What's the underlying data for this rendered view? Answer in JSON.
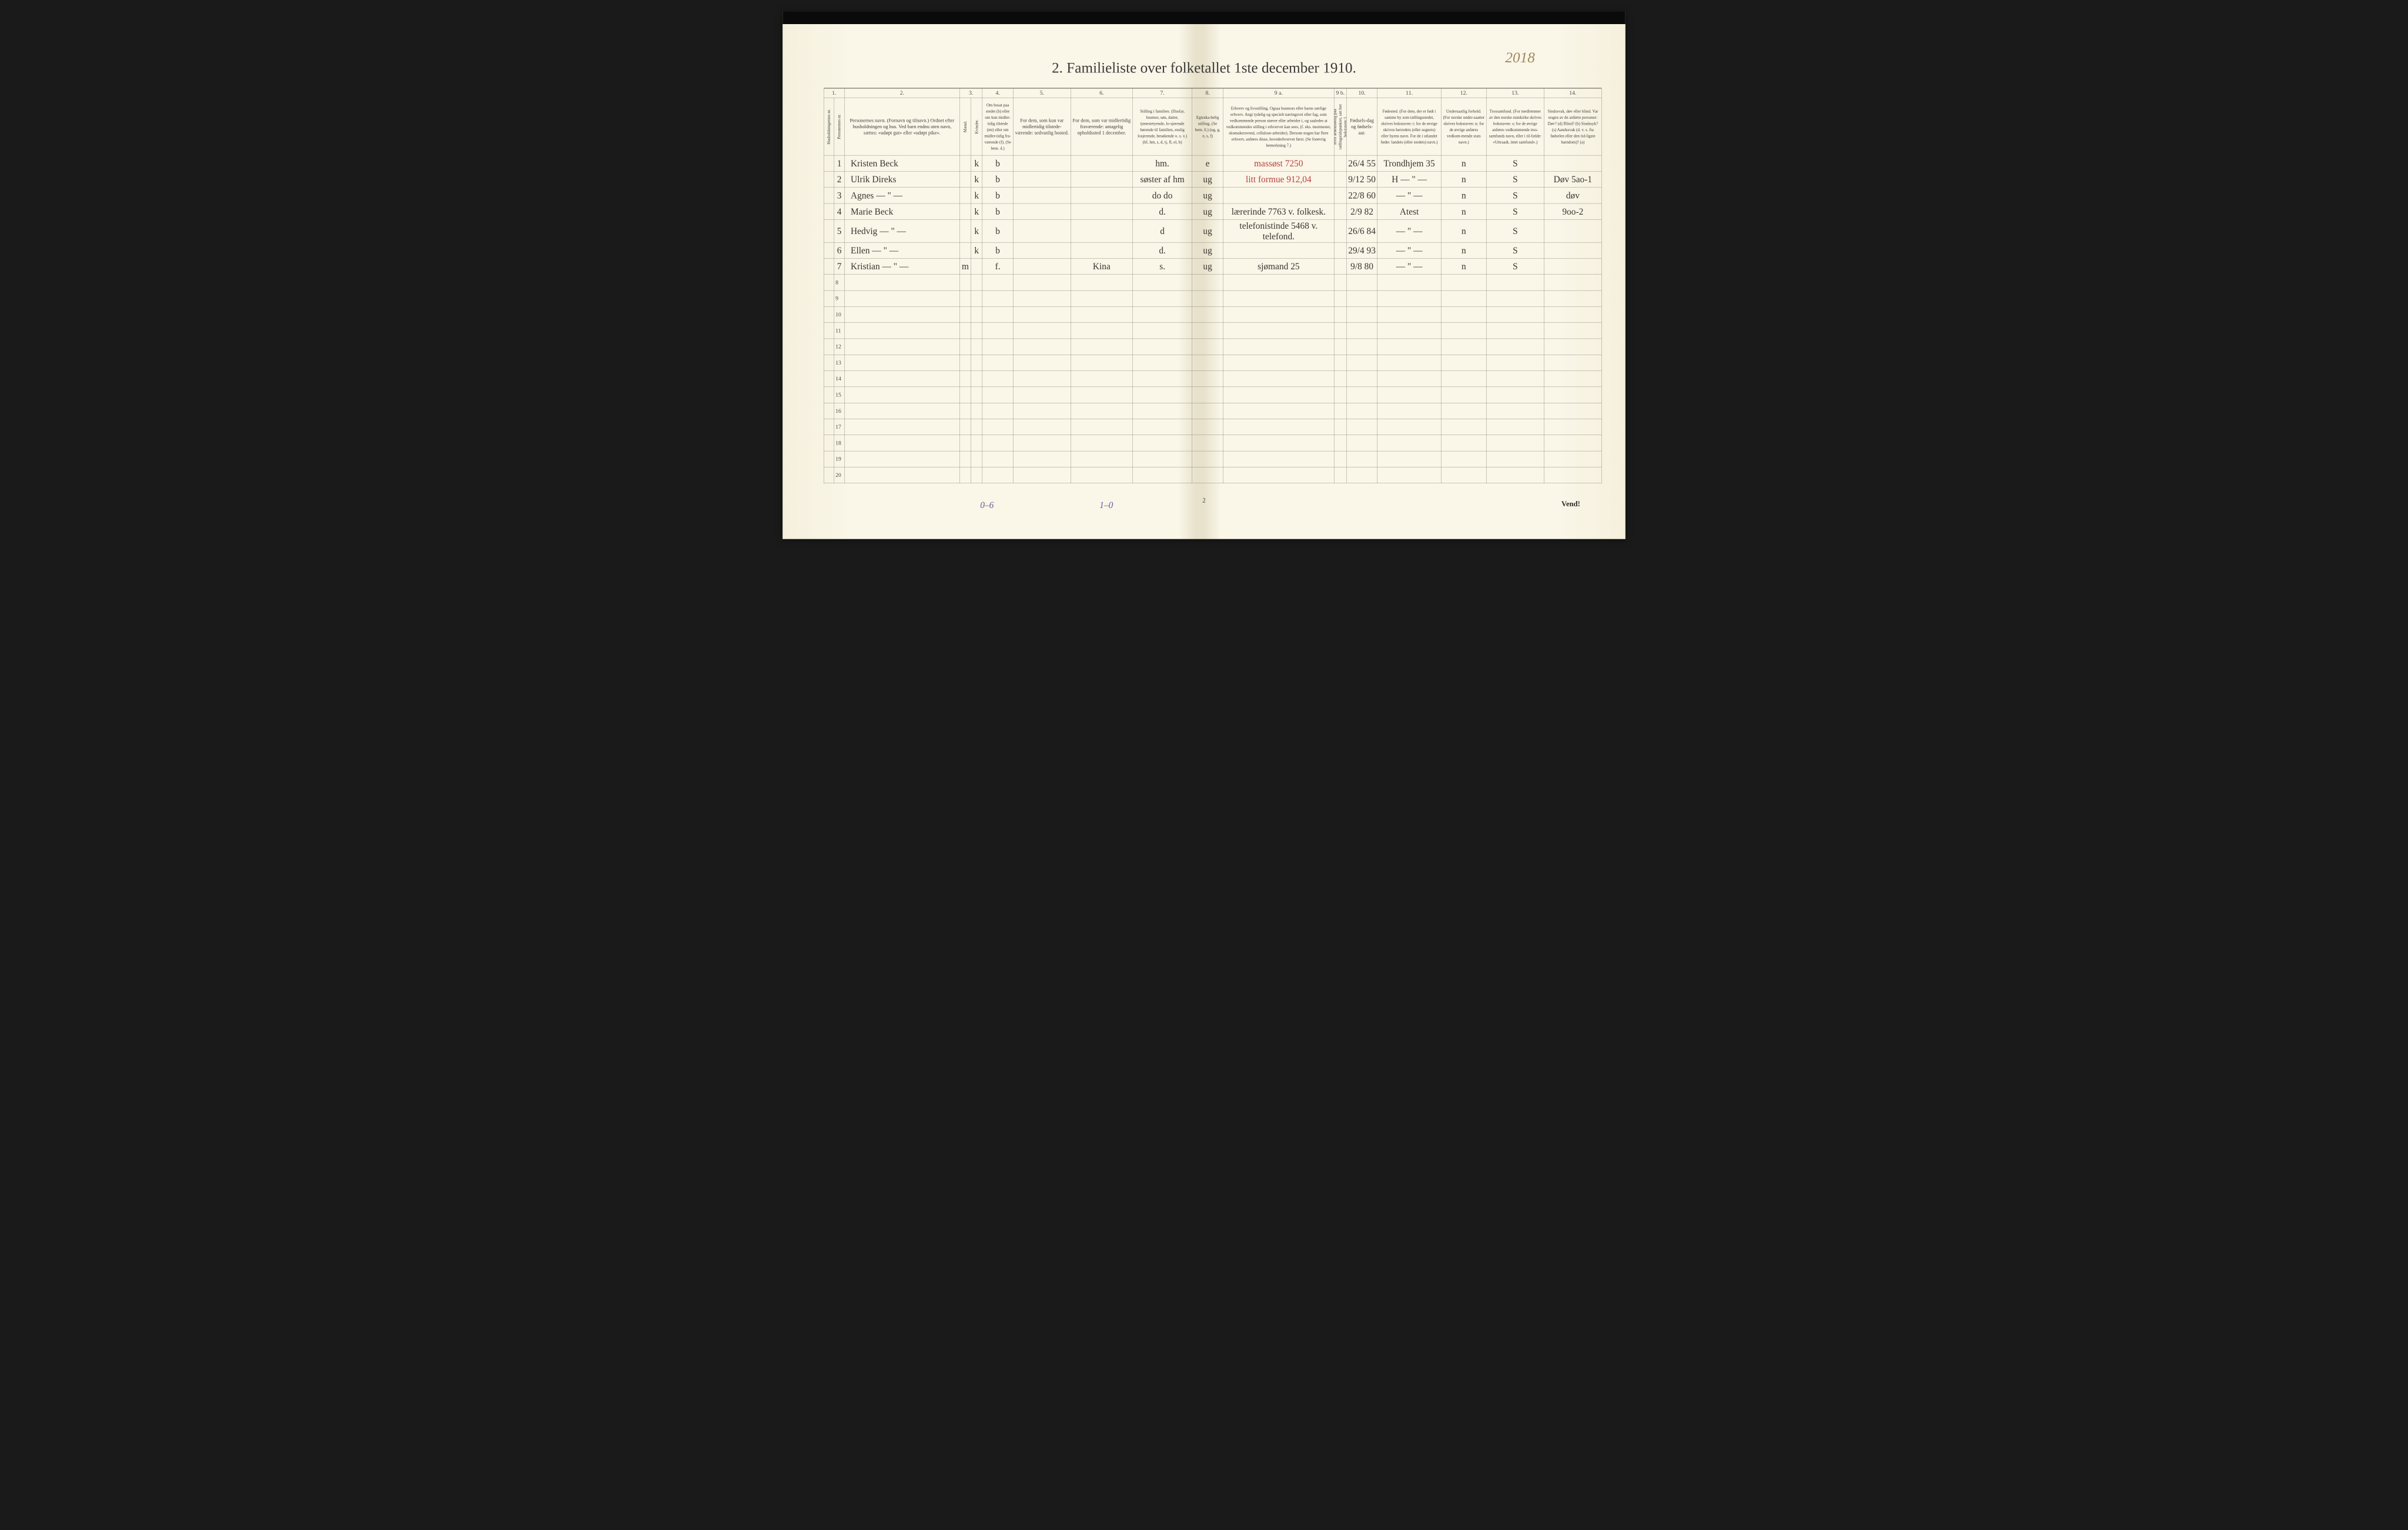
{
  "document": {
    "title": "2.  Familieliste over folketallet 1ste december 1910.",
    "corner_annotation": "2018",
    "page_number": "2",
    "vend_label": "Vend!",
    "footer_annotation_1": "0–6",
    "footer_annotation_2": "1–0"
  },
  "columns": {
    "numbers": [
      "1.",
      "2.",
      "3.",
      "4.",
      "5.",
      "6.",
      "7.",
      "8.",
      "9 a.",
      "9 b.",
      "10.",
      "11.",
      "12.",
      "13.",
      "14."
    ],
    "headers": {
      "c1": "Husholdningernes nr.",
      "c1b": "Personernes nr.",
      "c2": "Personernes navn.\n(Fornavn og tilnavn.)\nOrdnet efter husholdningen og hus.\nVed barn endnu uten navn, sættes: «udøpt gut» eller «udøpt pike».",
      "c3": "Kjøn.",
      "c3a": "Mænd.",
      "c3b": "Kvinder.",
      "c3foot": "m.  k.",
      "c4": "Om bosat paa stedet (b) eller om kun midler-tidig tilstede (mt) eller om midler-tidig fra-værende (f). (Se bem. 4.)",
      "c5": "For dem, som kun var midlertidig tilstede-værende:\nsedvanlig bosted.",
      "c6": "For dem, som var midlertidig fraværende:\nantagelig opholdssted 1 december.",
      "c7": "Stilling i familien.\n(Husfar, husmor, søn, datter, tjenestetyende, lo-sjerende hørende til familien, enslig losjerende, besøkende o. s. v.)\n(hf, hm, s, d, tj, fl, el, b)",
      "c8": "Egteska-belig stilling. (Se bem. 6.) (ug, g, e, s, f)",
      "c9a": "Erhverv og livsstilling.\nOgsaa husmors eller barns særlige erhverv. Angi tydelig og specielt næringsvei eller fag, som vedkommende person utøver eller arbeider i, og saaledes at vedkommendes stilling i erhvervet kan sees, (f. eks. murmester, skomakersvend, cellulose-arbeider). Dersom nogen har flere erhverv, anføres disse, hovederhvervet først.\n(Se forøvrig bemerkning 7.)",
      "c9b": "Hvis arbeidsledig paa tællingstidspunktet, sæt her bokstaven: l.",
      "c10": "Fødsels-dag og fødsels-aar.",
      "c11": "Fødested.\n(For dem, der er født i samme by som tællingsstedet, skrives bokstaven: t; for de øvrige skrives herredets (eller sognets) eller byens navn. For de i utlandet fødte: landets (eller stedets) navn.)",
      "c12": "Undersaatlig forhold.\n(For norske under-saatter skrives bokstaven: n; for de øvrige anføres vedkom-mende stats navn.)",
      "c13": "Trossamfund.\n(For medlemmer av den norske statskirke skrives bokstaven: s; for de øvrige anføres vedkommende tros-samfunds navn, eller i til-fælde: «Uttraadt, intet samfund».)",
      "c14": "Sindssvak, døv eller blind.\nVar nogen av de anførte personer:\nDøv? (d)\nBlind? (b)\nSindssyk? (s)\nAandssvak (d. v. s. fra fødselen eller den tid-ligste barndom)? (a)"
    }
  },
  "rows": [
    {
      "nr": "1",
      "name": "Kristen Beck",
      "sex_m": "",
      "sex_k": "k",
      "bosat": "b",
      "sedvanlig": "",
      "opphold": "",
      "stilling": "hm.",
      "egtesk": "e",
      "erhverv_red": "massøst        7250",
      "erhverv": "",
      "l": "",
      "fodselsdag": "26/4 55",
      "fodested": "Trondhjem 35",
      "under": "n",
      "tros": "S",
      "sind": ""
    },
    {
      "nr": "2",
      "name": "Ulrik Direks",
      "sex_m": "",
      "sex_k": "k",
      "bosat": "b",
      "sedvanlig": "",
      "opphold": "",
      "stilling": "søster af hm",
      "egtesk": "ug",
      "erhverv_red": "litt formue  912,04",
      "erhverv": "",
      "l": "",
      "fodselsdag": "9/12 50",
      "fodested": "H — \" —",
      "under": "n",
      "tros": "S",
      "sind": "Døv 5ao-1"
    },
    {
      "nr": "3",
      "name": "Agnes    — \" —",
      "sex_m": "",
      "sex_k": "k",
      "bosat": "b",
      "sedvanlig": "",
      "opphold": "",
      "stilling": "do   do",
      "egtesk": "ug",
      "erhverv_red": "",
      "erhverv": "",
      "l": "",
      "fodselsdag": "22/8 60",
      "fodested": "— \" —",
      "under": "n",
      "tros": "S",
      "sind": "døv"
    },
    {
      "nr": "4",
      "name": "Marie Beck",
      "sex_m": "",
      "sex_k": "k",
      "bosat": "b",
      "sedvanlig": "",
      "opphold": "",
      "stilling": "d.",
      "egtesk": "ug",
      "erhverv_red": "",
      "erhverv": "lærerinde 7763 v. folkesk.",
      "l": "",
      "fodselsdag": "2/9 82",
      "fodested": "Atest",
      "under": "n",
      "tros": "S",
      "sind": "9oo-2"
    },
    {
      "nr": "5",
      "name": "Hedvig    — \" —",
      "sex_m": "",
      "sex_k": "k",
      "bosat": "b",
      "sedvanlig": "",
      "opphold": "",
      "stilling": "d",
      "egtesk": "ug",
      "erhverv_red": "",
      "erhverv": "telefonistinde 5468 v. telefond.",
      "l": "",
      "fodselsdag": "26/6 84",
      "fodested": "— \" —",
      "under": "n",
      "tros": "S",
      "sind": ""
    },
    {
      "nr": "6",
      "name": "Ellen      — \" —",
      "sex_m": "",
      "sex_k": "k",
      "bosat": "b",
      "sedvanlig": "",
      "opphold": "",
      "stilling": "d.",
      "egtesk": "ug",
      "erhverv_red": "",
      "erhverv": "",
      "l": "",
      "fodselsdag": "29/4 93",
      "fodested": "— \" —",
      "under": "n",
      "tros": "S",
      "sind": ""
    },
    {
      "nr": "7",
      "name": "Kristian  — \" —",
      "sex_m": "m",
      "sex_k": "",
      "bosat": "f.",
      "sedvanlig": "",
      "opphold": "Kina",
      "stilling": "s.",
      "egtesk": "ug",
      "erhverv_red": "",
      "erhverv": "sjømand 25",
      "l": "",
      "fodselsdag": "9/8 80",
      "fodested": "— \" —",
      "under": "n",
      "tros": "S",
      "sind": ""
    }
  ],
  "empty_row_numbers": [
    "8",
    "9",
    "10",
    "11",
    "12",
    "13",
    "14",
    "15",
    "16",
    "17",
    "18",
    "19",
    "20"
  ],
  "styling": {
    "paper_bg": "#faf6e8",
    "paper_edge": "#f5f0dc",
    "fold_shadow": "#e8e2cc",
    "border_color": "#6a6a5a",
    "text_color": "#3a3a3a",
    "handwriting_color": "#3a3530",
    "red_ink": "#b84040",
    "pencil_blue": "#6a5aa0",
    "faded_brown": "#a08860",
    "title_fontsize": 72,
    "header_fontsize": 24,
    "data_fontsize": 44,
    "colnum_fontsize": 28
  }
}
